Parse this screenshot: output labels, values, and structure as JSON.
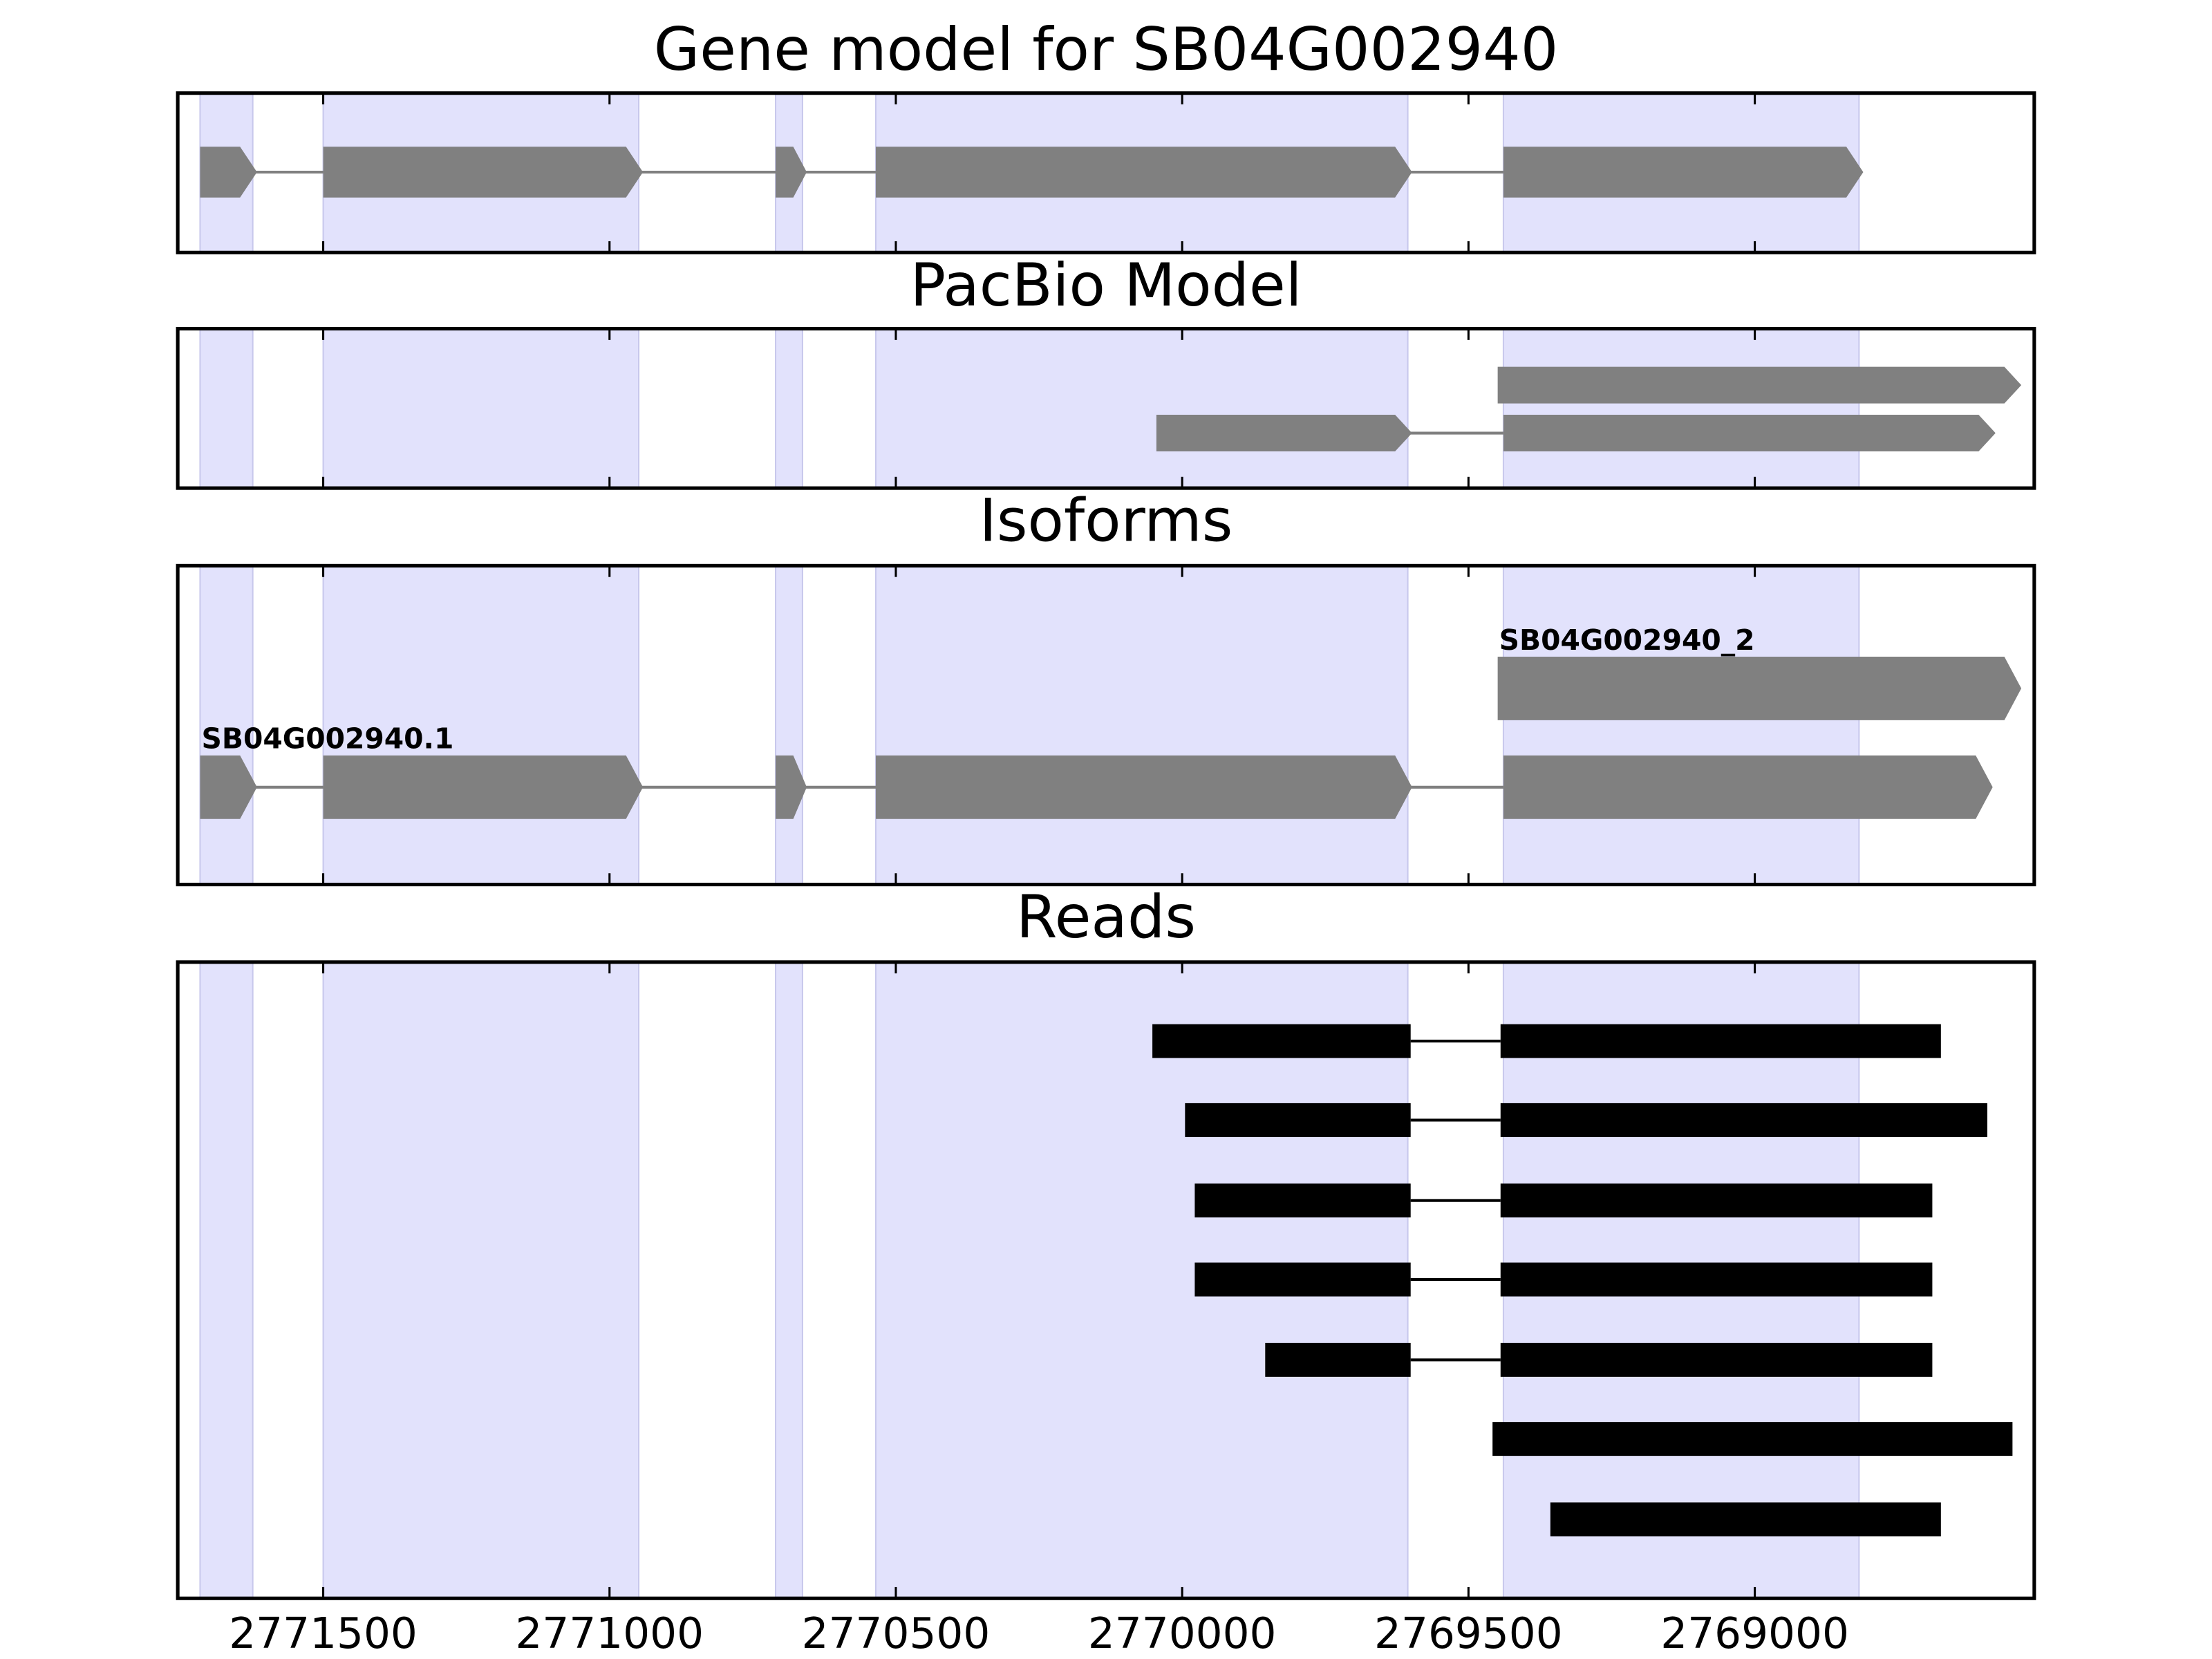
{
  "chart_data": {
    "type": "gene-tracks",
    "xlim": [
      2771754,
      2768512
    ],
    "xticks": [
      2771500,
      2771000,
      2770500,
      2770000,
      2769500,
      2769000
    ],
    "shade_color": "#e2e2fc",
    "shaded_regions": [
      [
        2771715,
        2771623
      ],
      [
        2771500,
        2770949
      ],
      [
        2770710,
        2770663
      ],
      [
        2770535,
        2769606
      ],
      [
        2769439,
        2768818
      ]
    ],
    "panels": [
      {
        "title": "Gene model for SB04G002940",
        "color": "#808080",
        "style": "arrow",
        "tracks": [
          {
            "exons": [
              [
                2771715,
                2771623
              ],
              [
                2771500,
                2770949
              ],
              [
                2770710,
                2770663
              ],
              [
                2770535,
                2769606
              ],
              [
                2769439,
                2768818
              ]
            ]
          }
        ]
      },
      {
        "title": "PacBio Model",
        "color": "#808080",
        "style": "arrow",
        "tracks": [
          {
            "exons": [
              [
                2769449,
                2768542
              ]
            ]
          },
          {
            "exons": [
              [
                2770045,
                2769606
              ],
              [
                2769439,
                2768587
              ]
            ]
          }
        ]
      },
      {
        "title": "Isoforms",
        "color": "#808080",
        "style": "arrow",
        "tracks": [
          {
            "label": "SB04G002940_2",
            "exons": [
              [
                2769449,
                2768542
              ]
            ]
          },
          {
            "label": "SB04G002940.1",
            "exons": [
              [
                2771715,
                2771623
              ],
              [
                2771500,
                2770949
              ],
              [
                2770710,
                2770663
              ],
              [
                2770535,
                2769606
              ],
              [
                2769439,
                2768592
              ]
            ]
          }
        ]
      },
      {
        "title": "Reads",
        "color": "#000000",
        "style": "box",
        "tracks": [
          {
            "exons": [
              [
                2770052,
                2769601
              ],
              [
                2769444,
                2768675
              ]
            ]
          },
          {
            "exons": [
              [
                2769995,
                2769601
              ],
              [
                2769444,
                2768594
              ]
            ]
          },
          {
            "exons": [
              [
                2769978,
                2769601
              ],
              [
                2769444,
                2768690
              ]
            ]
          },
          {
            "exons": [
              [
                2769978,
                2769601
              ],
              [
                2769444,
                2768690
              ]
            ]
          },
          {
            "exons": [
              [
                2769855,
                2769601
              ],
              [
                2769444,
                2768690
              ]
            ]
          },
          {
            "exons": [
              [
                2769458,
                2768550
              ]
            ]
          },
          {
            "exons": [
              [
                2769357,
                2768675
              ]
            ]
          }
        ]
      }
    ]
  }
}
